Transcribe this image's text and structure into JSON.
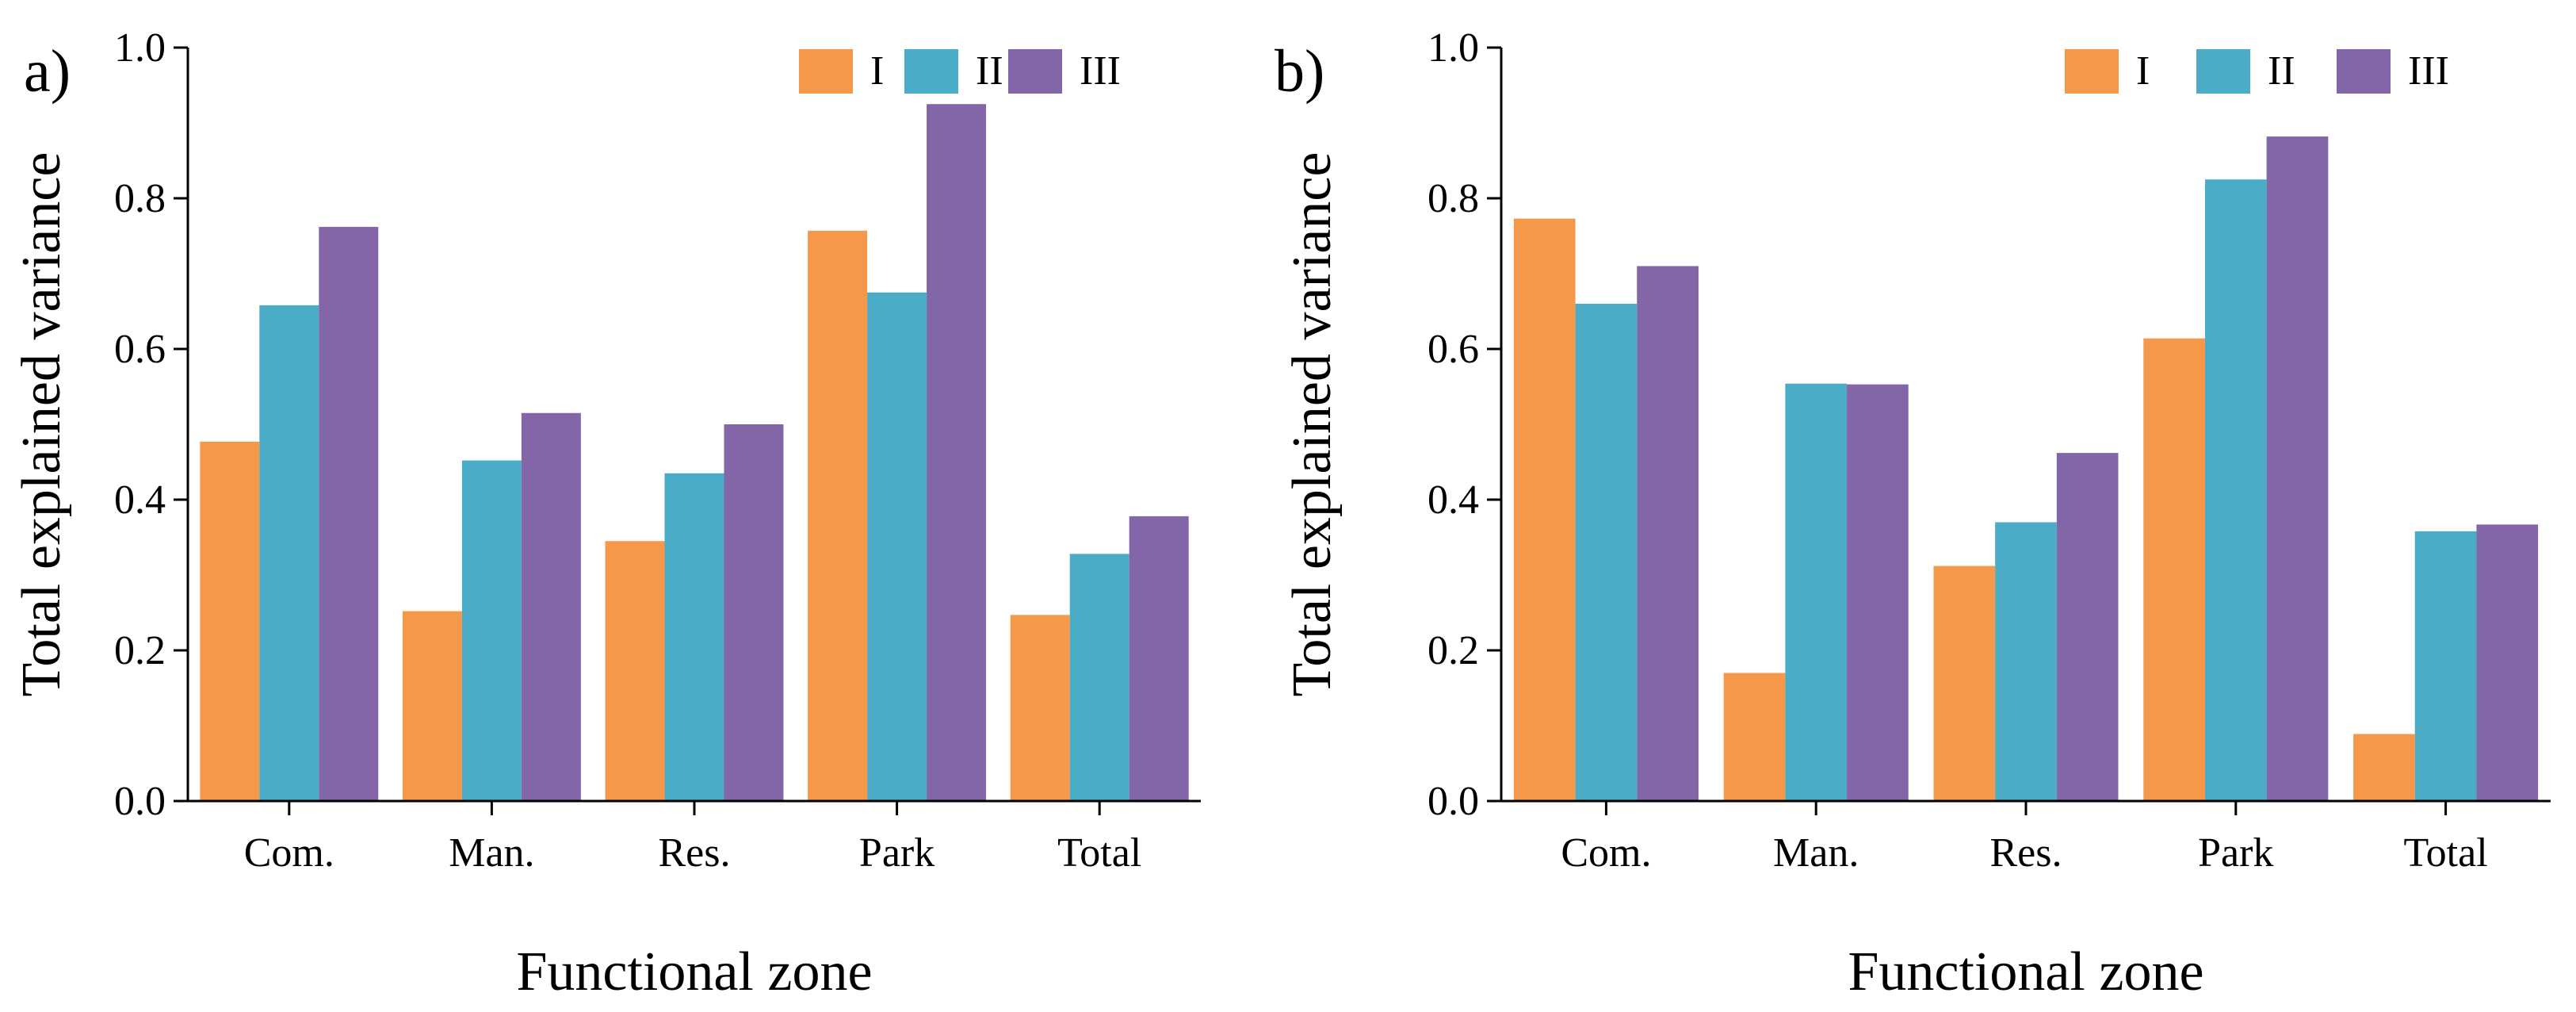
{
  "colors": {
    "I": "#F5984A",
    "II": "#4AACC6",
    "III": "#8266A7"
  },
  "chart_data": [
    {
      "panel_label": "a)",
      "type": "bar",
      "xlabel": "Functional zone",
      "ylabel": "Total explained variance",
      "ylim": [
        0,
        1.0
      ],
      "yticks": [
        "0.0",
        "0.2",
        "0.4",
        "0.6",
        "0.8",
        "1.0"
      ],
      "categories": [
        "Com.",
        "Man.",
        "Res.",
        "Park",
        "Total"
      ],
      "legend_position": "top-right",
      "series": [
        {
          "name": "I",
          "values": [
            0.477,
            0.252,
            0.345,
            0.757,
            0.247
          ]
        },
        {
          "name": "II",
          "values": [
            0.658,
            0.452,
            0.435,
            0.675,
            0.328
          ]
        },
        {
          "name": "III",
          "values": [
            0.762,
            0.515,
            0.5,
            0.925,
            0.378
          ]
        }
      ]
    },
    {
      "panel_label": "b)",
      "type": "bar",
      "xlabel": "Functional zone",
      "ylabel": "Total explained variance",
      "ylim": [
        0,
        1.0
      ],
      "yticks": [
        "0.0",
        "0.2",
        "0.4",
        "0.6",
        "0.8",
        "1.0"
      ],
      "categories": [
        "Com.",
        "Man.",
        "Res.",
        "Park",
        "Total"
      ],
      "legend_position": "top-right",
      "series": [
        {
          "name": "I",
          "values": [
            0.773,
            0.17,
            0.312,
            0.614,
            0.089
          ]
        },
        {
          "name": "II",
          "values": [
            0.66,
            0.554,
            0.37,
            0.825,
            0.358
          ]
        },
        {
          "name": "III",
          "values": [
            0.71,
            0.553,
            0.462,
            0.882,
            0.367
          ]
        }
      ]
    }
  ]
}
